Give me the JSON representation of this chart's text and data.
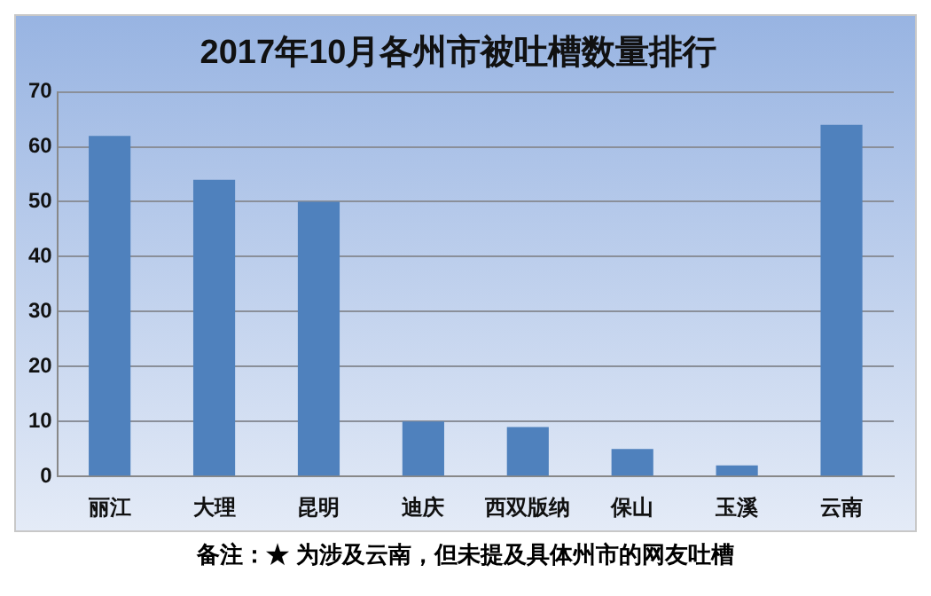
{
  "chart_data": {
    "type": "bar",
    "title": "2017年10月各州市被吐槽数量排行",
    "categories": [
      "丽江",
      "大理",
      "昆明",
      "迪庆",
      "西双版纳",
      "保山",
      "玉溪",
      "云南"
    ],
    "values": [
      62,
      54,
      50,
      10,
      9,
      5,
      2,
      64
    ],
    "color": "#4f81bd",
    "ylim": [
      0,
      70
    ],
    "yticks": [
      0,
      10,
      20,
      30,
      40,
      50,
      60,
      70
    ],
    "grid": "y",
    "legend": false,
    "annotations": [
      "备注：★ 为涉及云南，但未提及具体州市的网友吐槽"
    ]
  }
}
